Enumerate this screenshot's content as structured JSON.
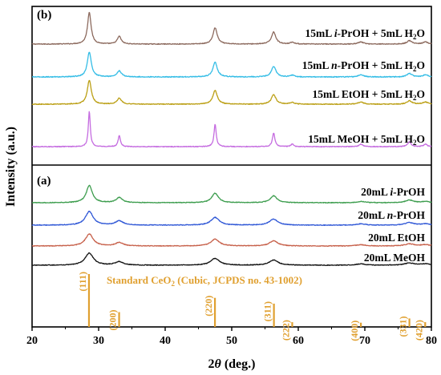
{
  "chart_data": {
    "type": "line",
    "xlabel": "2θ (deg.)",
    "ylabel": "Intensity (a.u.)",
    "xlim": [
      20,
      80
    ],
    "x_ticks": [
      20,
      30,
      40,
      50,
      60,
      70,
      80
    ],
    "grid": false,
    "panels": [
      {
        "label": "(b)",
        "series": [
          {
            "name": "15mL i-PrOH + 5mL H2O",
            "color": "#8c6a5e",
            "baseline": 0.9,
            "noise": 0.9,
            "peaks": [
              [
                28.6,
                37,
                0.32
              ],
              [
                33.1,
                9,
                0.35
              ],
              [
                47.5,
                19,
                0.38
              ],
              [
                56.3,
                14,
                0.4
              ],
              [
                59.1,
                2,
                0.4
              ],
              [
                69.4,
                2.5,
                0.5
              ],
              [
                76.7,
                4,
                0.45
              ],
              [
                79.1,
                2.5,
                0.45
              ]
            ]
          },
          {
            "name": "15mL n-PrOH + 5mL H2O",
            "color": "#35bde6",
            "baseline": 0.9,
            "noise": 1.0,
            "peaks": [
              [
                28.6,
                29,
                0.36
              ],
              [
                33.1,
                7,
                0.4
              ],
              [
                47.5,
                17,
                0.4
              ],
              [
                56.3,
                12,
                0.42
              ],
              [
                59.1,
                2,
                0.4
              ],
              [
                69.4,
                2.5,
                0.5
              ],
              [
                76.7,
                4,
                0.45
              ],
              [
                79.1,
                2.5,
                0.45
              ]
            ]
          },
          {
            "name": "15mL EtOH + 5mL H2O",
            "color": "#bb9f14",
            "baseline": 0.9,
            "noise": 0.9,
            "peaks": [
              [
                28.6,
                28,
                0.36
              ],
              [
                33.1,
                7,
                0.4
              ],
              [
                47.5,
                16,
                0.4
              ],
              [
                56.3,
                11,
                0.42
              ],
              [
                59.1,
                2,
                0.4
              ],
              [
                69.4,
                2.5,
                0.5
              ],
              [
                76.7,
                4,
                0.45
              ],
              [
                79.1,
                2.5,
                0.45
              ]
            ]
          },
          {
            "name": "15mL MeOH + 5mL H2O",
            "color": "#c56ce0",
            "baseline": 0.9,
            "noise": 0.9,
            "peaks": [
              [
                28.6,
                41,
                0.18
              ],
              [
                33.1,
                13,
                0.2
              ],
              [
                47.5,
                26,
                0.2
              ],
              [
                56.3,
                16,
                0.22
              ],
              [
                59.1,
                3,
                0.25
              ],
              [
                69.4,
                3,
                0.3
              ],
              [
                76.7,
                6,
                0.3
              ],
              [
                79.1,
                3,
                0.3
              ]
            ]
          }
        ]
      },
      {
        "label": "(a)",
        "series": [
          {
            "name": "20mL i-PrOH",
            "color": "#3d9d4e",
            "baseline": 0.9,
            "noise": 0.8,
            "peaks": [
              [
                28.6,
                20,
                0.55
              ],
              [
                33.1,
                6,
                0.55
              ],
              [
                47.5,
                11,
                0.6
              ],
              [
                56.3,
                8,
                0.6
              ],
              [
                69.4,
                1.5,
                0.7
              ],
              [
                76.7,
                3,
                0.7
              ],
              [
                79.1,
                1.5,
                0.7
              ]
            ]
          },
          {
            "name": "20mL n-PrOH",
            "color": "#2f57d6",
            "baseline": 0.9,
            "noise": 0.8,
            "peaks": [
              [
                28.6,
                16,
                0.7
              ],
              [
                33.1,
                5,
                0.7
              ],
              [
                47.5,
                9,
                0.75
              ],
              [
                56.3,
                7,
                0.75
              ],
              [
                69.4,
                1.5,
                0.8
              ],
              [
                76.7,
                3,
                0.8
              ],
              [
                79.1,
                1.5,
                0.8
              ]
            ]
          },
          {
            "name": "20mL EtOH",
            "color": "#c7614b",
            "baseline": 0.9,
            "noise": 0.8,
            "peaks": [
              [
                28.6,
                14,
                0.7
              ],
              [
                33.1,
                4,
                0.7
              ],
              [
                47.5,
                8,
                0.75
              ],
              [
                56.3,
                6,
                0.75
              ],
              [
                69.4,
                1.5,
                0.8
              ],
              [
                76.7,
                2.5,
                0.8
              ],
              [
                79.1,
                1.5,
                0.8
              ]
            ]
          },
          {
            "name": "20mL MeOH",
            "color": "#111111",
            "baseline": 0.9,
            "noise": 0.8,
            "peaks": [
              [
                28.6,
                14,
                0.75
              ],
              [
                33.1,
                4,
                0.75
              ],
              [
                47.5,
                8,
                0.8
              ],
              [
                56.3,
                6,
                0.8
              ],
              [
                69.4,
                1.5,
                0.85
              ],
              [
                76.7,
                2.5,
                0.85
              ],
              [
                79.1,
                1.5,
                0.85
              ]
            ]
          }
        ]
      }
    ],
    "reference": {
      "name": "Standard CeO2 (Cubic, JCPDS no. 43-1002)",
      "color": "#e0a030",
      "lines": [
        {
          "hkl": "(111)",
          "x": 28.55,
          "intensity": 100
        },
        {
          "hkl": "(200)",
          "x": 33.08,
          "intensity": 28
        },
        {
          "hkl": "(220)",
          "x": 47.48,
          "intensity": 55
        },
        {
          "hkl": "(311)",
          "x": 56.34,
          "intensity": 44
        },
        {
          "hkl": "(222)",
          "x": 59.09,
          "intensity": 9
        },
        {
          "hkl": "(400)",
          "x": 69.41,
          "intensity": 8
        },
        {
          "hkl": "(331)",
          "x": 76.7,
          "intensity": 16
        },
        {
          "hkl": "(420)",
          "x": 79.07,
          "intensity": 9
        }
      ]
    }
  }
}
